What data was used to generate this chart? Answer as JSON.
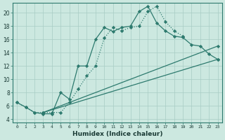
{
  "xlabel": "Humidex (Indice chaleur)",
  "background_color": "#cce8e0",
  "line_color": "#2d7a6e",
  "xlim": [
    -0.5,
    23.5
  ],
  "ylim": [
    3.5,
    21.5
  ],
  "yticks": [
    4,
    6,
    8,
    10,
    12,
    14,
    16,
    18,
    20
  ],
  "line1_dotted": {
    "x": [
      0,
      1,
      2,
      3,
      4,
      5,
      6,
      7,
      8,
      9,
      10,
      11,
      12,
      13,
      14,
      15,
      16,
      17,
      18,
      19
    ],
    "y": [
      6.5,
      5.8,
      5.0,
      5.0,
      5.0,
      5.0,
      6.5,
      8.5,
      10.5,
      12.0,
      16.2,
      17.8,
      17.3,
      17.8,
      18.0,
      20.2,
      21.0,
      18.7,
      17.3,
      16.5
    ]
  },
  "line2_solid_main": {
    "x": [
      0,
      1,
      2,
      3,
      4,
      5,
      6,
      7,
      8,
      9,
      10,
      11,
      12,
      13,
      14,
      15,
      16,
      17,
      18,
      19,
      20,
      21,
      22,
      23
    ],
    "y": [
      6.5,
      5.8,
      5.0,
      4.8,
      4.8,
      8.0,
      7.0,
      12.0,
      12.0,
      16.0,
      17.8,
      17.2,
      17.8,
      18.0,
      20.2,
      21.0,
      18.5,
      17.3,
      16.5,
      16.3,
      15.2,
      15.0,
      13.8,
      13.0
    ]
  },
  "line3_diag_upper": {
    "x": [
      3,
      23
    ],
    "y": [
      5.0,
      15.0
    ]
  },
  "line3_diag_lower": {
    "x": [
      3,
      23
    ],
    "y": [
      5.0,
      13.0
    ]
  }
}
